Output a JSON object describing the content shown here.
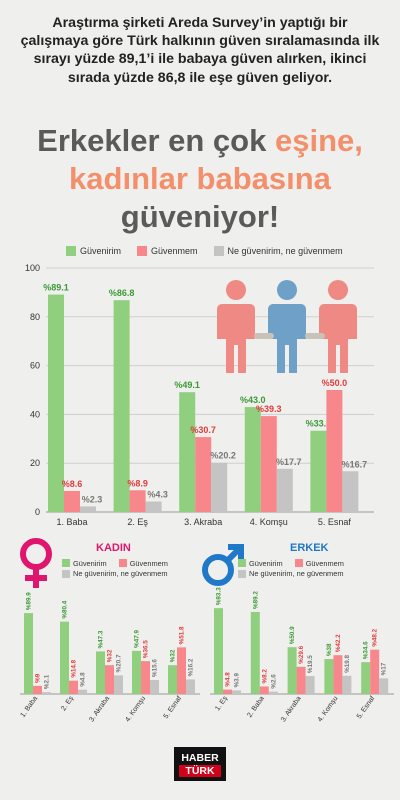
{
  "intro_text": "Araştırma şirketi Areda Survey’in yaptığı bir çalışmaya göre Türk halkının güven sıralamasında ilk sırayı yüzde 89,1’i ile babaya güven alırken, ikinci sırada yüzde 86,8 ile eşe güven geliyor.",
  "headline": {
    "part1": "Erkekler en çok ",
    "part2": "eşine,",
    "part3": "kadınlar babasına",
    "part4": "güveniyor!"
  },
  "logo": {
    "line1": "HABER",
    "line2": "TÜRK"
  },
  "colors": {
    "guvenirim": "#8fcf7e",
    "guvenmem": "#f7878a",
    "neither": "#c4c4c4",
    "kadin": "#e0166e",
    "erkek": "#1f78c8"
  },
  "icons": {
    "people": "people-holding-hands-icon",
    "female": "female-symbol-icon",
    "male": "male-symbol-icon"
  },
  "chart_data": [
    {
      "type": "bar",
      "title": "",
      "legend": [
        "Güvenirim",
        "Güvenmem",
        "Ne güvenirim, ne güvenmem"
      ],
      "legend_position": "top",
      "categories": [
        "1. Baba",
        "2. Eş",
        "3. Akraba",
        "4. Komşu",
        "5. Esnaf"
      ],
      "series": [
        {
          "name": "Güvenirim",
          "values": [
            89.1,
            86.8,
            49.1,
            43.0,
            33.3
          ],
          "labels": [
            "%89.1",
            "%86.8",
            "%49.1",
            "%43.0",
            "%33.3"
          ]
        },
        {
          "name": "Güvenmem",
          "values": [
            8.6,
            8.9,
            30.7,
            39.3,
            50.0
          ],
          "labels": [
            "%8.6",
            "%8.9",
            "%30.7",
            "%39.3",
            "%50.0"
          ]
        },
        {
          "name": "Ne güvenirim, ne güvenmem",
          "values": [
            2.3,
            4.3,
            20.2,
            17.7,
            16.7
          ],
          "labels": [
            "%2.3",
            "%4.3",
            "%20.2",
            "%17.7",
            "%16.7"
          ]
        }
      ],
      "yticks": [
        "0",
        "20",
        "40",
        "60",
        "80",
        "100"
      ],
      "ylim": [
        0,
        100
      ],
      "grid": true
    },
    {
      "type": "bar",
      "title": "KADIN",
      "legend": [
        "Güvenirim",
        "Güvenmem",
        "Ne güvenirim, ne güvenmem"
      ],
      "categories": [
        "1. Baba",
        "2. Eş",
        "3. Akraba",
        "4. Komşu",
        "5. Esnaf"
      ],
      "series": [
        {
          "name": "Güvenirim",
          "values": [
            89.9,
            80.4,
            47.3,
            47.9,
            32.0
          ],
          "labels": [
            "%89.9",
            "%80.4",
            "%47.3",
            "%47.9",
            "%32"
          ]
        },
        {
          "name": "Güvenmem",
          "values": [
            9.0,
            14.8,
            32.0,
            36.5,
            51.8
          ],
          "labels": [
            "%9",
            "%14.8",
            "%32",
            "%36.5",
            "%51.8"
          ]
        },
        {
          "name": "Ne güvenirim, ne güvenmem",
          "values": [
            2.1,
            4.8,
            20.7,
            15.6,
            16.2
          ],
          "labels": [
            "%2.1",
            "%4.8",
            "%20.7",
            "%15.6",
            "%16.2"
          ]
        }
      ],
      "ylim": [
        0,
        100
      ],
      "grid": false
    },
    {
      "type": "bar",
      "title": "ERKEK",
      "legend": [
        "Güvenirim",
        "Güvenmem",
        "Ne güvenirim, ne güvenmem"
      ],
      "categories": [
        "1. Eş",
        "2. Baba",
        "3. Akraba",
        "4. Komşu",
        "5. Esnaf"
      ],
      "series": [
        {
          "name": "Güvenirim",
          "values": [
            93.3,
            89.2,
            50.9,
            38.0,
            34.6
          ],
          "labels": [
            "%93.3",
            "%89.2",
            "%50.9",
            "%38",
            "%34.6"
          ]
        },
        {
          "name": "Güvenmem",
          "values": [
            4.8,
            8.2,
            29.6,
            42.2,
            48.2
          ],
          "labels": [
            "%4.8",
            "%8.2",
            "%29.6",
            "%42.2",
            "%48.2"
          ]
        },
        {
          "name": "Ne güvenirim, ne güvenmem",
          "values": [
            3.9,
            2.6,
            19.5,
            19.8,
            17.0
          ],
          "labels": [
            "%3.9",
            "%2.6",
            "%19.5",
            "%19.8",
            "%17"
          ]
        }
      ],
      "ylim": [
        0,
        100
      ],
      "grid": false
    }
  ]
}
